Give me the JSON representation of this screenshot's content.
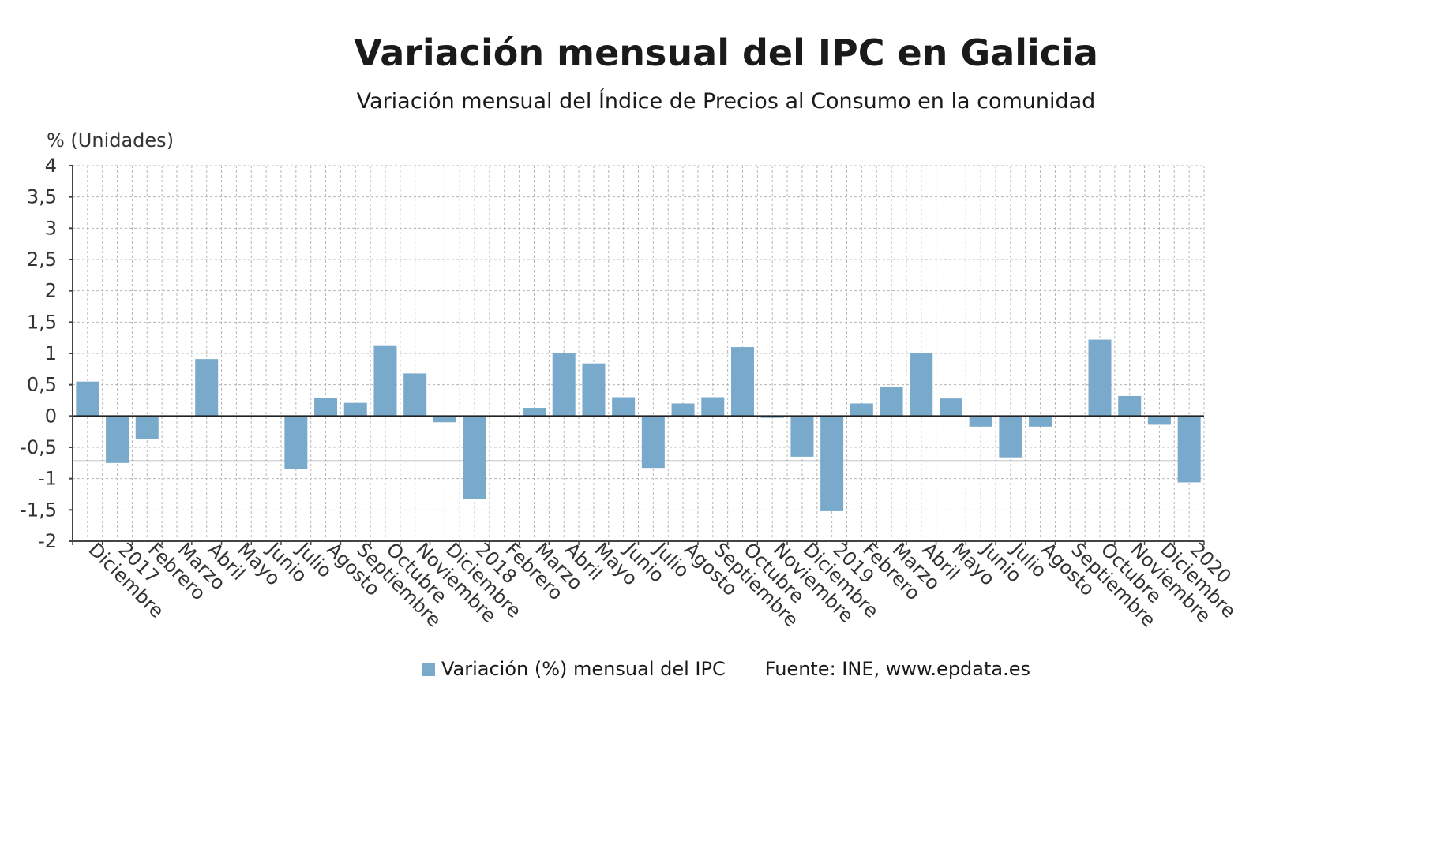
{
  "chart_data": {
    "type": "bar",
    "title": "Variación mensual del IPC en Galicia",
    "subtitle": "Variación mensual del Índice de Precios al Consumo en la comunidad",
    "ylabel": "% (Unidades)",
    "xlabel": "",
    "ylim": [
      -2,
      4
    ],
    "yticks": [
      "-2",
      "-1,5",
      "-1",
      "-0,5",
      "0",
      "0,5",
      "1",
      "1,5",
      "2",
      "2,5",
      "3",
      "3,5",
      "4"
    ],
    "grid": true,
    "legend_position": "bottom",
    "source": "Fuente: INE, www.epdata.es",
    "bar_color": "#7aaacb",
    "categories": [
      "Diciembre",
      "2017",
      "Febrero",
      "Marzo",
      "Abril",
      "Mayo",
      "Junio",
      "Julio",
      "Agosto",
      "Septiembre",
      "Octubre",
      "Noviembre",
      "Diciembre",
      "2018",
      "Febrero",
      "Marzo",
      "Abril",
      "Mayo",
      "Junio",
      "Julio",
      "Agosto",
      "Septiembre",
      "Octubre",
      "Noviembre",
      "Diciembre",
      "2019",
      "Febrero",
      "Marzo",
      "Abril",
      "Mayo",
      "Junio",
      "Julio",
      "Agosto",
      "Septiembre",
      "Octubre",
      "Noviembre",
      "Diciembre",
      "2020"
    ],
    "series": [
      {
        "name": "Variación (%) mensual del IPC",
        "values": [
          0.55,
          -0.75,
          -0.37,
          0.01,
          0.91,
          0.01,
          0.01,
          -0.85,
          0.29,
          0.21,
          1.13,
          0.68,
          -0.1,
          -1.32,
          0.0,
          0.13,
          1.01,
          0.84,
          0.3,
          -0.83,
          0.2,
          0.3,
          1.1,
          -0.03,
          -0.65,
          -1.52,
          0.2,
          0.46,
          1.01,
          0.28,
          -0.17,
          -0.66,
          -0.17,
          -0.02,
          1.22,
          0.32,
          -0.14,
          -1.06
        ]
      }
    ]
  }
}
